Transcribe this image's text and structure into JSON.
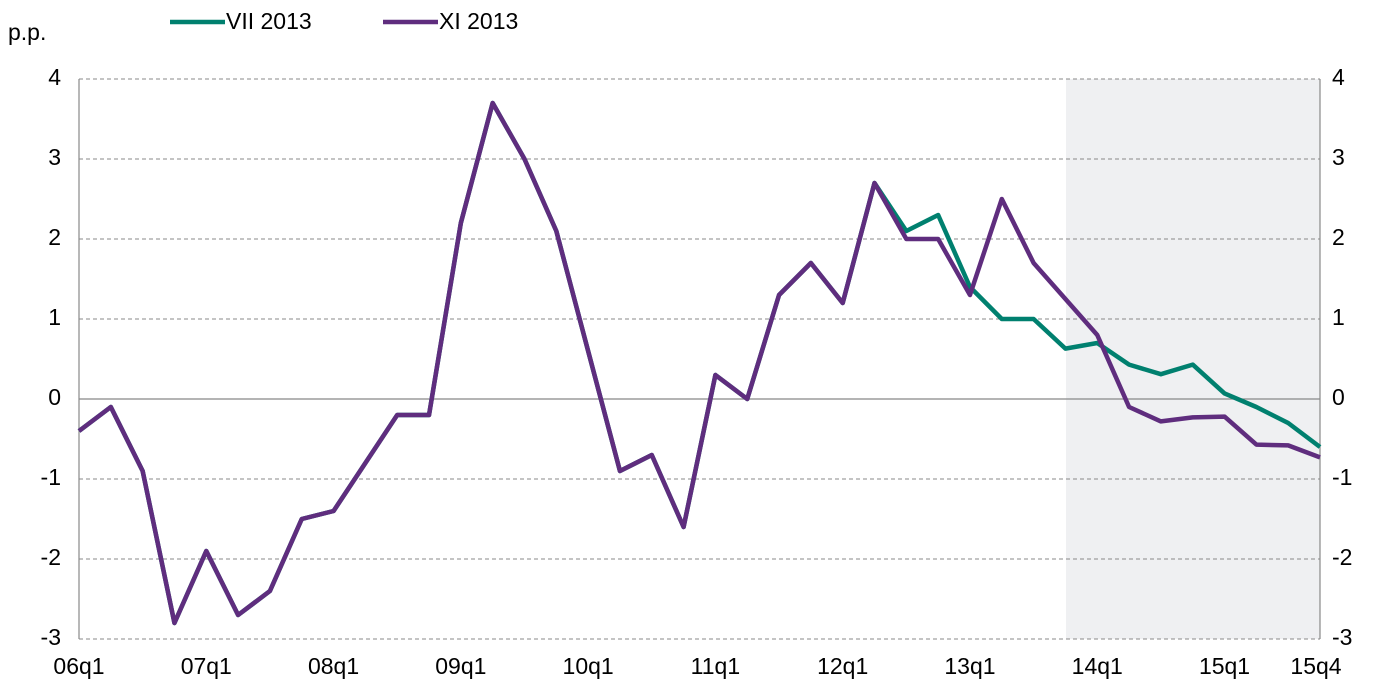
{
  "chart_data": {
    "type": "line",
    "y_label": "p.p.",
    "categories": [
      "06q1",
      null,
      null,
      null,
      "07q1",
      null,
      null,
      null,
      "08q1",
      null,
      null,
      null,
      "09q1",
      null,
      null,
      null,
      "10q1",
      null,
      null,
      null,
      "11q1",
      null,
      null,
      null,
      "12q1",
      null,
      null,
      null,
      "13q1",
      null,
      null,
      null,
      "14q1",
      null,
      null,
      null,
      "15q1",
      null,
      null,
      "15q4"
    ],
    "series": [
      {
        "name": "VII 2013",
        "color": "#00806f",
        "values": [
          -0.4,
          -0.1,
          -0.9,
          -2.8,
          -1.9,
          -2.7,
          -2.4,
          -1.5,
          -1.4,
          -0.8,
          -0.2,
          -0.2,
          2.2,
          3.7,
          3.0,
          2.1,
          0.6,
          -0.9,
          -0.7,
          -1.6,
          0.3,
          0.0,
          1.3,
          1.7,
          1.2,
          2.7,
          2.1,
          2.3,
          1.4,
          1.0,
          1.0,
          0.63,
          0.7,
          0.43,
          0.31,
          0.43,
          0.07,
          -0.1,
          -0.3,
          -0.6
        ]
      },
      {
        "name": "XI 2013",
        "color": "#5f2d7e",
        "values": [
          -0.4,
          -0.1,
          -0.9,
          -2.8,
          -1.9,
          -2.7,
          -2.4,
          -1.5,
          -1.4,
          -0.8,
          -0.2,
          -0.2,
          2.2,
          3.7,
          3.0,
          2.1,
          0.6,
          -0.9,
          -0.7,
          -1.6,
          0.3,
          0.0,
          1.3,
          1.7,
          1.2,
          2.7,
          2.0,
          2.0,
          1.3,
          2.5,
          1.7,
          1.25,
          0.8,
          -0.1,
          -0.28,
          -0.23,
          -0.22,
          -0.57,
          -0.58,
          -0.73
        ]
      }
    ],
    "ylim": [
      -3,
      4
    ],
    "yticks": [
      -3,
      -2,
      -1,
      0,
      1,
      2,
      3,
      4
    ],
    "grid": true,
    "legend": "top"
  }
}
